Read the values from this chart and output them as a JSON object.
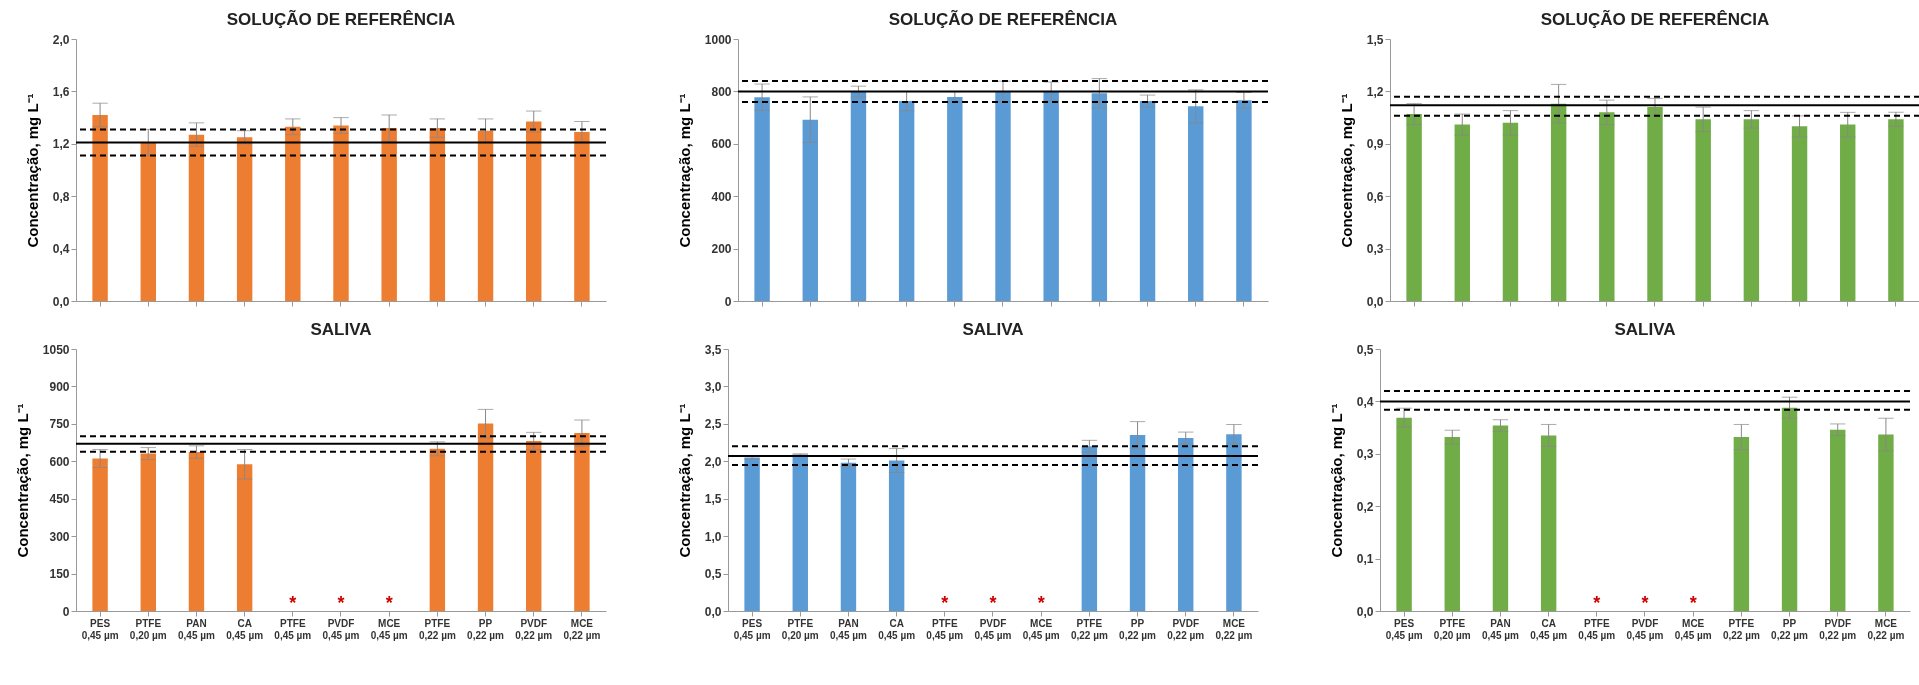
{
  "chart_data": [
    {
      "type": "bar",
      "title": "SOLUÇÃO DE REFERÊNCIA",
      "ylabel": "Concentração, mg L⁻¹",
      "tick_labels": "y",
      "color": "#ed7d31",
      "categories": [
        null,
        null,
        null,
        null,
        null,
        null,
        null,
        null,
        null,
        null,
        null
      ],
      "values": [
        1.42,
        1.21,
        1.27,
        1.25,
        1.33,
        1.34,
        1.32,
        1.32,
        1.3,
        1.37,
        1.29
      ],
      "errors": [
        0.09,
        0.1,
        0.09,
        0.05,
        0.06,
        0.06,
        0.1,
        0.07,
        0.09,
        0.08,
        0.08
      ],
      "ylim": [
        0,
        2
      ],
      "yticks": [
        {
          "value": 0,
          "label": "0,0"
        },
        {
          "value": 0.4,
          "label": "0,4"
        },
        {
          "value": 0.8,
          "label": "0,8"
        },
        {
          "value": 1.2,
          "label": "1,2"
        },
        {
          "value": 1.6,
          "label": "1,6"
        },
        {
          "value": 2,
          "label": "2,0"
        }
      ],
      "ref_lines": [
        {
          "axis": "y",
          "value": 1.21,
          "color": "#000000",
          "line_style": "solid"
        },
        {
          "axis": "y",
          "value": 1.31,
          "color": "#000000",
          "line_style": "dashed"
        },
        {
          "axis": "y",
          "value": 1.11,
          "color": "#000000",
          "line_style": "dashed"
        }
      ]
    },
    {
      "type": "bar",
      "title": "SOLUÇÃO DE REFERÊNCIA",
      "ylabel": "Concentração, mg L⁻¹",
      "tick_labels": "y",
      "color": "#5b9bd5",
      "categories": [
        null,
        null,
        null,
        null,
        null,
        null,
        null,
        null,
        null,
        null,
        null
      ],
      "values": [
        778,
        692,
        799,
        763,
        779,
        800,
        800,
        793,
        763,
        743,
        766
      ],
      "errors": [
        50,
        87,
        21,
        37,
        20,
        39,
        36,
        56,
        23,
        63,
        30
      ],
      "ylim": [
        0,
        1000
      ],
      "yticks": [
        0,
        200,
        400,
        600,
        800,
        1000
      ],
      "ref_lines": [
        {
          "axis": "y",
          "value": 800,
          "color": "#000000",
          "line_style": "solid"
        },
        {
          "axis": "y",
          "value": 840,
          "color": "#000000",
          "line_style": "dashed"
        },
        {
          "axis": "y",
          "value": 760,
          "color": "#000000",
          "line_style": "dashed"
        }
      ]
    },
    {
      "type": "bar",
      "title": "SOLUÇÃO DE REFERÊNCIA",
      "ylabel": "Concentração, mg L⁻¹",
      "tick_labels": "y",
      "color": "#70ad47",
      "categories": [
        null,
        null,
        null,
        null,
        null,
        null,
        null,
        null,
        null,
        null,
        null
      ],
      "values": [
        1.07,
        1.01,
        1.02,
        1.13,
        1.08,
        1.11,
        1.04,
        1.04,
        1.0,
        1.01,
        1.04
      ],
      "errors": [
        0.06,
        0.06,
        0.07,
        0.11,
        0.07,
        0.05,
        0.07,
        0.05,
        0.06,
        0.07,
        0.04
      ],
      "ylim": [
        0,
        1.5
      ],
      "yticks": [
        {
          "value": 0,
          "label": "0,0"
        },
        {
          "value": 0.3,
          "label": "0,3"
        },
        {
          "value": 0.6,
          "label": "0,6"
        },
        {
          "value": 0.9,
          "label": "0,9"
        },
        {
          "value": 1.2,
          "label": "1,2"
        },
        {
          "value": 1.5,
          "label": "1,5"
        }
      ],
      "ref_lines": [
        {
          "axis": "y",
          "value": 1.12,
          "color": "#000000",
          "line_style": "solid"
        },
        {
          "axis": "y",
          "value": 1.17,
          "color": "#000000",
          "line_style": "dashed"
        },
        {
          "axis": "y",
          "value": 1.06,
          "color": "#000000",
          "line_style": "dashed"
        }
      ]
    },
    {
      "type": "bar",
      "title": "SALIVA",
      "ylabel": "Concentração, mg L⁻¹",
      "color": "#ed7d31",
      "categories": [
        "PES\n0,45 µm",
        "PTFE\n0,20 µm",
        "PAN\n0,45 µm",
        "CA\n0,45 µm",
        "PTFE\n0,45 µm",
        "PVDF\n0,45 µm",
        "MCE\n0,45 µm",
        "PTFE\n0,22 µm",
        "PP\n0,22 µm",
        "PVDF\n0,22 µm",
        "MCE\n0,22 µm"
      ],
      "values": [
        611,
        631,
        637,
        588,
        null,
        null,
        null,
        650,
        751,
        681,
        713
      ],
      "errors": [
        36,
        24,
        25,
        59,
        null,
        null,
        null,
        28,
        57,
        35,
        52
      ],
      "value_labels": [
        null,
        null,
        null,
        null,
        "*",
        "*",
        "*",
        null,
        null,
        null,
        null
      ],
      "ylim": [
        0,
        1050
      ],
      "yticks": [
        0,
        150,
        300,
        450,
        600,
        750,
        900,
        1050
      ],
      "ref_lines": [
        {
          "axis": "y",
          "value": 670,
          "color": "#000000",
          "line_style": "solid"
        },
        {
          "axis": "y",
          "value": 700,
          "color": "#000000",
          "line_style": "dashed"
        },
        {
          "axis": "y",
          "value": 638,
          "color": "#000000",
          "line_style": "dashed"
        }
      ]
    },
    {
      "type": "bar",
      "title": "SALIVA",
      "ylabel": "Concentração, mg L⁻¹",
      "color": "#5b9bd5",
      "categories": [
        "PES\n0,45 µm",
        "PTFE\n0,20 µm",
        "PAN\n0,45 µm",
        "CA\n0,45 µm",
        "PTFE\n0,45 µm",
        "PVDF\n0,45 µm",
        "MCE\n0,45 µm",
        "PTFE\n0,22 µm",
        "PP\n0,22 µm",
        "PVDF\n0,22 µm",
        "MCE\n0,22 µm"
      ],
      "values": [
        2.05,
        2.09,
        1.98,
        2.01,
        null,
        null,
        null,
        2.2,
        2.35,
        2.31,
        2.36
      ],
      "errors": [
        0.02,
        0.01,
        0.05,
        0.16,
        null,
        null,
        null,
        0.08,
        0.18,
        0.08,
        0.13
      ],
      "value_labels": [
        null,
        null,
        null,
        null,
        "*",
        "*",
        "*",
        null,
        null,
        null,
        null
      ],
      "ylim": [
        0,
        3.5
      ],
      "yticks": [
        {
          "value": 0,
          "label": "0,0"
        },
        {
          "value": 0.5,
          "label": "0,5"
        },
        {
          "value": 1,
          "label": "1,0"
        },
        {
          "value": 1.5,
          "label": "1,5"
        },
        {
          "value": 2,
          "label": "2,0"
        },
        {
          "value": 2.5,
          "label": "2,5"
        },
        {
          "value": 3,
          "label": "3,0"
        },
        {
          "value": 3.5,
          "label": "3,5"
        }
      ],
      "ref_lines": [
        {
          "axis": "y",
          "value": 2.07,
          "color": "#000000",
          "line_style": "solid"
        },
        {
          "axis": "y",
          "value": 2.2,
          "color": "#000000",
          "line_style": "dashed"
        },
        {
          "axis": "y",
          "value": 1.95,
          "color": "#000000",
          "line_style": "dashed"
        }
      ]
    },
    {
      "type": "bar",
      "title": "SALIVA",
      "ylabel": "Concentração, mg L⁻¹",
      "color": "#70ad47",
      "categories": [
        "PES\n0,45 µm",
        "PTFE\n0,20 µm",
        "PAN\n0,45 µm",
        "CA\n0,45 µm",
        "PTFE\n0,45 µm",
        "PVDF\n0,45 µm",
        "MCE\n0,45 µm",
        "PTFE\n0,22 µm",
        "PP\n0,22 µm",
        "PVDF\n0,22 µm",
        "MCE\n0,22 µm"
      ],
      "values": [
        0.369,
        0.332,
        0.354,
        0.335,
        null,
        null,
        null,
        0.332,
        0.388,
        0.346,
        0.337
      ],
      "errors": [
        0.018,
        0.013,
        0.011,
        0.021,
        null,
        null,
        null,
        0.024,
        0.02,
        0.011,
        0.031
      ],
      "value_labels": [
        null,
        null,
        null,
        null,
        "*",
        "*",
        "*",
        null,
        null,
        null,
        null
      ],
      "ylim": [
        0,
        0.5
      ],
      "yticks": [
        {
          "value": 0,
          "label": "0,0"
        },
        {
          "value": 0.1,
          "label": "0,1"
        },
        {
          "value": 0.2,
          "label": "0,2"
        },
        {
          "value": 0.3,
          "label": "0,3"
        },
        {
          "value": 0.4,
          "label": "0,4"
        },
        {
          "value": 0.5,
          "label": "0,5"
        }
      ],
      "ref_lines": [
        {
          "axis": "y",
          "value": 0.4,
          "color": "#000000",
          "line_style": "solid"
        },
        {
          "axis": "y",
          "value": 0.42,
          "color": "#000000",
          "line_style": "dashed"
        },
        {
          "axis": "y",
          "value": 0.384,
          "color": "#000000",
          "line_style": "dashed"
        }
      ]
    }
  ]
}
